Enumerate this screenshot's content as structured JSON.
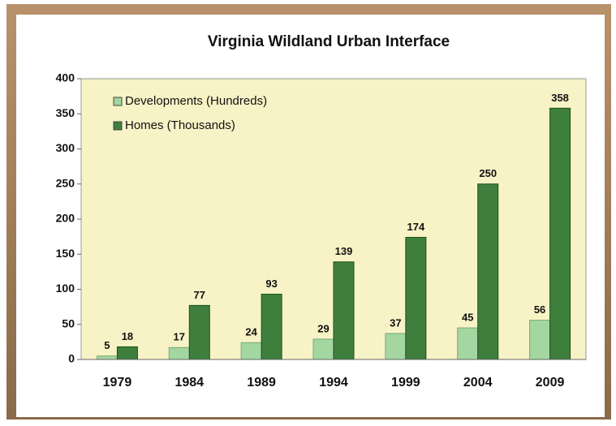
{
  "chart_data": {
    "type": "bar",
    "title": "Virginia Wildland Urban Interface",
    "categories": [
      "1979",
      "1984",
      "1989",
      "1994",
      "1999",
      "2004",
      "2009"
    ],
    "series": [
      {
        "name": "Developments (Hundreds)",
        "color": "#a3d6a0",
        "values": [
          5,
          17,
          24,
          29,
          37,
          45,
          56
        ]
      },
      {
        "name": "Homes (Thousands)",
        "color": "#3e7f3e",
        "values": [
          18,
          77,
          93,
          139,
          174,
          250,
          358
        ]
      }
    ],
    "ylim": [
      0,
      400
    ],
    "yticks": [
      0,
      50,
      100,
      150,
      200,
      250,
      300,
      350,
      400
    ],
    "legend": "upper left"
  }
}
